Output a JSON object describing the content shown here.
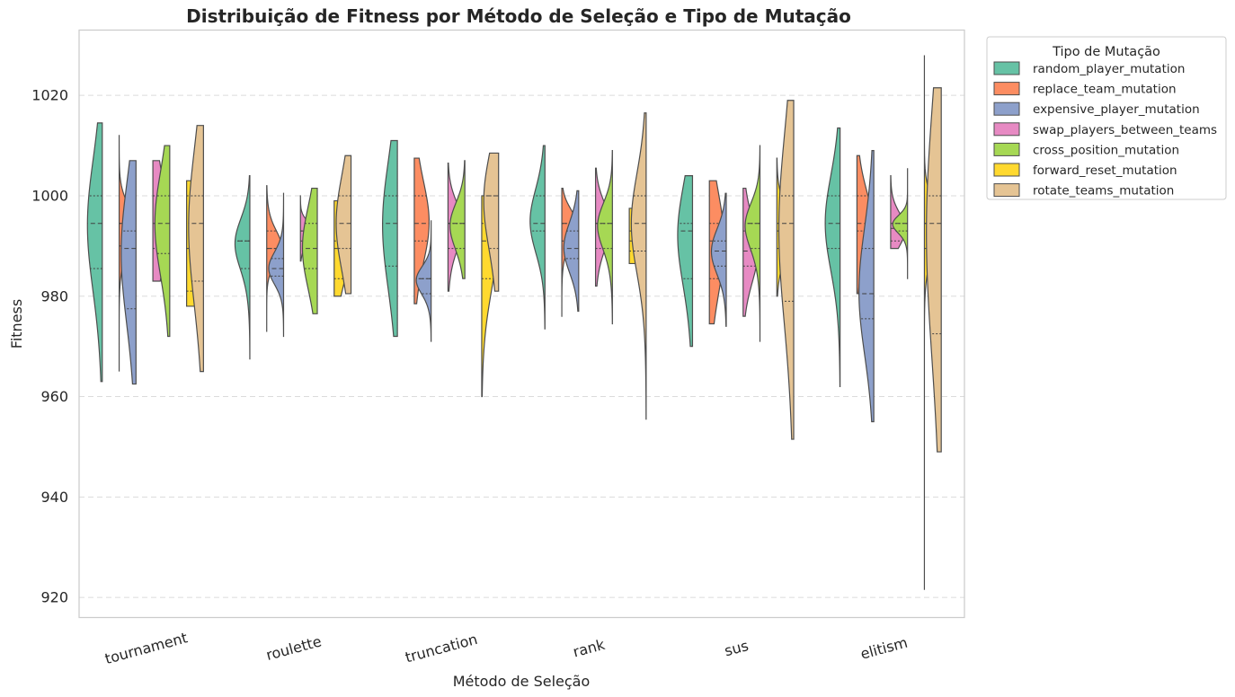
{
  "chart_data": {
    "type": "violin",
    "title": "Distribuição de Fitness por Método de Seleção e Tipo de Mutação",
    "xlabel": "Método de Seleção",
    "ylabel": "Fitness",
    "ylim": [
      916,
      1033
    ],
    "yticks": [
      920,
      940,
      960,
      980,
      1000,
      1020
    ],
    "grid": true,
    "legend": {
      "title": "Tipo de Mutação",
      "position": "outside-top-right"
    },
    "categories": [
      "tournament",
      "roulette",
      "truncation",
      "rank",
      "sus",
      "elitism"
    ],
    "series": [
      {
        "name": "random_player_mutation",
        "color": "#66c2a5",
        "values": [
          [
            963,
            985.5,
            994.5,
            1000,
            1014.5
          ],
          [
            967.5,
            985.5,
            991,
            991,
            1004
          ],
          [
            972,
            986,
            994.5,
            1000,
            1011
          ],
          [
            973.5,
            993,
            994.5,
            1000,
            1010
          ],
          [
            970,
            983.5,
            993,
            994.5,
            1004
          ],
          [
            962,
            989.5,
            994.5,
            1000,
            1013.5
          ]
        ]
      },
      {
        "name": "replace_team_mutation",
        "color": "#fc8d62",
        "values": [
          [
            965,
            990,
            994.5,
            994.5,
            1012
          ],
          [
            973,
            989.5,
            989.5,
            993,
            1002
          ],
          [
            978.5,
            991,
            994.5,
            1000,
            1007.5
          ],
          [
            976,
            991,
            994.5,
            994.5,
            1001.5
          ],
          [
            974.5,
            983.5,
            991,
            994.5,
            1003
          ],
          [
            980.5,
            993,
            994.5,
            1000,
            1008
          ]
        ]
      },
      {
        "name": "expensive_player_mutation",
        "color": "#8da0cb",
        "values": [
          [
            962.5,
            977.5,
            989.5,
            993,
            1007
          ],
          [
            972,
            984,
            985.5,
            987.5,
            1000.5
          ],
          [
            971,
            980.5,
            983.5,
            983.5,
            995
          ],
          [
            977,
            987.5,
            989.5,
            993,
            1001
          ],
          [
            974,
            986,
            989,
            991,
            1000.5
          ],
          [
            955,
            975.5,
            980.5,
            989.5,
            1009
          ]
        ]
      },
      {
        "name": "swap_players_between_teams",
        "color": "#e78ac3",
        "values": [
          [
            983,
            989.5,
            994.5,
            1000,
            1007
          ],
          [
            987,
            991,
            993,
            993,
            1000
          ],
          [
            981,
            989.5,
            994.5,
            994.5,
            1006.5
          ],
          [
            982,
            989.5,
            994.5,
            994.5,
            1005.5
          ],
          [
            976,
            986,
            989,
            993,
            1001.5
          ],
          [
            989.5,
            991,
            993.5,
            994.5,
            1004
          ]
        ]
      },
      {
        "name": "cross_position_mutation",
        "color": "#a6d854",
        "values": [
          [
            972,
            988.5,
            994.5,
            1000,
            1010
          ],
          [
            976.5,
            985.5,
            989.5,
            994.5,
            1001.5
          ],
          [
            983.5,
            989.5,
            994.5,
            994.5,
            1007
          ],
          [
            974.5,
            989.5,
            994.5,
            994.5,
            1009
          ],
          [
            971,
            989.5,
            994.5,
            994.5,
            1010
          ],
          [
            983.5,
            993,
            994.5,
            994.5,
            1005.5
          ]
        ]
      },
      {
        "name": "forward_reset_mutation",
        "color": "#ffd92f",
        "values": [
          [
            978,
            981,
            989.5,
            1000,
            1003
          ],
          [
            980,
            983.5,
            989.5,
            991,
            999
          ],
          [
            960,
            983.5,
            991,
            994.5,
            1000
          ],
          [
            986.5,
            989,
            991,
            993,
            997.5
          ],
          [
            980,
            989.5,
            993,
            994.5,
            1007.5
          ],
          [
            921.5,
            989.5,
            994.5,
            994.5,
            1028
          ]
        ]
      },
      {
        "name": "rotate_teams_mutation",
        "color": "#e5c494",
        "values": [
          [
            965,
            983,
            994.5,
            1000,
            1014
          ],
          [
            980.5,
            989.5,
            994.5,
            1000,
            1008
          ],
          [
            981,
            989.5,
            1000,
            1000,
            1008.5
          ],
          [
            955.5,
            989,
            994.5,
            1000,
            1016.5
          ],
          [
            951.5,
            979,
            994.5,
            1000,
            1019
          ],
          [
            949,
            972.5,
            994.5,
            1000,
            1021.5
          ]
        ]
      }
    ],
    "values_format": "[min, q1, median, q3, max]"
  }
}
